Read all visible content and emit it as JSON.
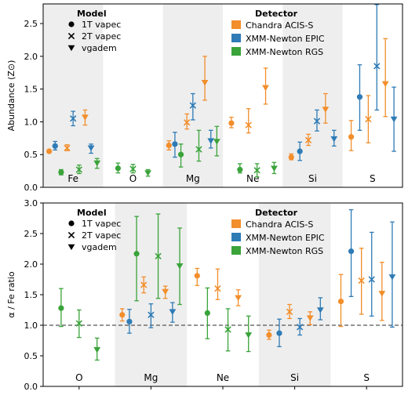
{
  "colors": {
    "chandra": "#f28e2b",
    "epic": "#2e7bb6",
    "rgs": "#3aa33a",
    "band": "#eeeeee",
    "refline": "#555555"
  },
  "legend": {
    "model_title": "Model",
    "detector_title": "Detector",
    "models": [
      {
        "label": "1T vapec",
        "marker": "circle"
      },
      {
        "label": "2T vapec",
        "marker": "x"
      },
      {
        "label": "vgadem",
        "marker": "triangle-down"
      }
    ],
    "detectors": [
      {
        "label": "Chandra ACIS-S",
        "color_key": "chandra"
      },
      {
        "label": "XMM-Newton EPIC",
        "color_key": "epic"
      },
      {
        "label": "XMM-Newton RGS",
        "color_key": "rgs"
      }
    ]
  },
  "chart_data": [
    {
      "type": "scatter",
      "ylabel": "Abundance (Z⊙)",
      "ylim": [
        0,
        2.8
      ],
      "yticks": [
        0.0,
        0.5,
        1.0,
        1.5,
        2.0,
        2.5
      ],
      "shaded_groups": [
        "Fe",
        "Mg",
        "Si"
      ],
      "reference_line": null,
      "groups": [
        {
          "element": "Fe",
          "points": [
            {
              "detector": "chandra",
              "model": "1T vapec",
              "y": 0.55,
              "lo": 0.53,
              "hi": 0.57
            },
            {
              "detector": "epic",
              "model": "1T vapec",
              "y": 0.63,
              "lo": 0.57,
              "hi": 0.7
            },
            {
              "detector": "rgs",
              "model": "1T vapec",
              "y": 0.23,
              "lo": 0.19,
              "hi": 0.27
            },
            {
              "detector": "chandra",
              "model": "2T vapec",
              "y": 0.6,
              "lo": 0.56,
              "hi": 0.65
            },
            {
              "detector": "epic",
              "model": "2T vapec",
              "y": 1.05,
              "lo": 0.94,
              "hi": 1.16
            },
            {
              "detector": "rgs",
              "model": "2T vapec",
              "y": 0.27,
              "lo": 0.21,
              "hi": 0.34
            },
            {
              "detector": "chandra",
              "model": "vgadem",
              "y": 1.07,
              "lo": 0.95,
              "hi": 1.18
            },
            {
              "detector": "epic",
              "model": "vgadem",
              "y": 0.6,
              "lo": 0.52,
              "hi": 0.66
            },
            {
              "detector": "rgs",
              "model": "vgadem",
              "y": 0.37,
              "lo": 0.29,
              "hi": 0.44
            }
          ]
        },
        {
          "element": "O",
          "points": [
            {
              "detector": "rgs",
              "model": "1T vapec",
              "y": 0.29,
              "lo": 0.22,
              "hi": 0.37
            },
            {
              "detector": "rgs",
              "model": "2T vapec",
              "y": 0.28,
              "lo": 0.22,
              "hi": 0.35
            },
            {
              "detector": "rgs",
              "model": "vgadem",
              "y": 0.22,
              "lo": 0.17,
              "hi": 0.27
            }
          ]
        },
        {
          "element": "Mg",
          "points": [
            {
              "detector": "chandra",
              "model": "1T vapec",
              "y": 0.64,
              "lo": 0.57,
              "hi": 0.71
            },
            {
              "detector": "epic",
              "model": "1T vapec",
              "y": 0.66,
              "lo": 0.46,
              "hi": 0.84
            },
            {
              "detector": "rgs",
              "model": "1T vapec",
              "y": 0.5,
              "lo": 0.31,
              "hi": 0.66
            },
            {
              "detector": "chandra",
              "model": "2T vapec",
              "y": 0.99,
              "lo": 0.89,
              "hi": 1.12
            },
            {
              "detector": "epic",
              "model": "2T vapec",
              "y": 1.25,
              "lo": 1.03,
              "hi": 1.43
            },
            {
              "detector": "rgs",
              "model": "2T vapec",
              "y": 0.58,
              "lo": 0.4,
              "hi": 0.87
            },
            {
              "detector": "chandra",
              "model": "vgadem",
              "y": 1.6,
              "lo": 1.33,
              "hi": 2.0
            },
            {
              "detector": "epic",
              "model": "vgadem",
              "y": 0.71,
              "lo": 0.6,
              "hi": 0.87
            },
            {
              "detector": "rgs",
              "model": "vgadem",
              "y": 0.7,
              "lo": 0.48,
              "hi": 0.93
            }
          ]
        },
        {
          "element": "Ne",
          "points": [
            {
              "detector": "chandra",
              "model": "1T vapec",
              "y": 0.98,
              "lo": 0.91,
              "hi": 1.07
            },
            {
              "detector": "rgs",
              "model": "1T vapec",
              "y": 0.27,
              "lo": 0.22,
              "hi": 0.36
            },
            {
              "detector": "chandra",
              "model": "2T vapec",
              "y": 0.95,
              "lo": 0.83,
              "hi": 1.2
            },
            {
              "detector": "rgs",
              "model": "2T vapec",
              "y": 0.26,
              "lo": 0.16,
              "hi": 0.36
            },
            {
              "detector": "chandra",
              "model": "vgadem",
              "y": 1.52,
              "lo": 1.27,
              "hi": 1.82
            },
            {
              "detector": "rgs",
              "model": "vgadem",
              "y": 0.29,
              "lo": 0.21,
              "hi": 0.38
            }
          ]
        },
        {
          "element": "Si",
          "points": [
            {
              "detector": "chandra",
              "model": "1T vapec",
              "y": 0.46,
              "lo": 0.42,
              "hi": 0.51
            },
            {
              "detector": "epic",
              "model": "1T vapec",
              "y": 0.55,
              "lo": 0.41,
              "hi": 0.69
            },
            {
              "detector": "chandra",
              "model": "2T vapec",
              "y": 0.72,
              "lo": 0.64,
              "hi": 0.81
            },
            {
              "detector": "epic",
              "model": "2T vapec",
              "y": 1.01,
              "lo": 0.86,
              "hi": 1.18
            },
            {
              "detector": "chandra",
              "model": "vgadem",
              "y": 1.19,
              "lo": 0.98,
              "hi": 1.43
            },
            {
              "detector": "epic",
              "model": "vgadem",
              "y": 0.74,
              "lo": 0.63,
              "hi": 0.87
            }
          ]
        },
        {
          "element": "S",
          "points": [
            {
              "detector": "chandra",
              "model": "1T vapec",
              "y": 0.77,
              "lo": 0.56,
              "hi": 1.02
            },
            {
              "detector": "epic",
              "model": "1T vapec",
              "y": 1.38,
              "lo": 0.87,
              "hi": 1.87
            },
            {
              "detector": "chandra",
              "model": "2T vapec",
              "y": 1.04,
              "lo": 0.68,
              "hi": 1.4
            },
            {
              "detector": "epic",
              "model": "2T vapec",
              "y": 1.85,
              "lo": 1.18,
              "hi": 2.79
            },
            {
              "detector": "chandra",
              "model": "vgadem",
              "y": 1.58,
              "lo": 1.08,
              "hi": 2.27
            },
            {
              "detector": "epic",
              "model": "vgadem",
              "y": 1.04,
              "lo": 0.55,
              "hi": 1.53
            }
          ]
        }
      ]
    },
    {
      "type": "scatter",
      "ylabel": "α / Fe ratio",
      "ylim": [
        0.0,
        3.0
      ],
      "yticks": [
        0.0,
        0.5,
        1.0,
        1.5,
        2.0,
        2.5,
        3.0
      ],
      "shaded_groups": [
        "Mg",
        "Si"
      ],
      "reference_line": 1.0,
      "groups": [
        {
          "element": "O",
          "points": [
            {
              "detector": "rgs",
              "model": "1T vapec",
              "y": 1.28,
              "lo": 0.98,
              "hi": 1.6
            },
            {
              "detector": "rgs",
              "model": "2T vapec",
              "y": 1.03,
              "lo": 0.8,
              "hi": 1.25
            },
            {
              "detector": "rgs",
              "model": "vgadem",
              "y": 0.6,
              "lo": 0.43,
              "hi": 0.79
            }
          ]
        },
        {
          "element": "Mg",
          "points": [
            {
              "detector": "chandra",
              "model": "1T vapec",
              "y": 1.17,
              "lo": 1.07,
              "hi": 1.27
            },
            {
              "detector": "epic",
              "model": "1T vapec",
              "y": 1.06,
              "lo": 0.87,
              "hi": 1.26
            },
            {
              "detector": "rgs",
              "model": "1T vapec",
              "y": 2.17,
              "lo": 1.4,
              "hi": 2.78
            },
            {
              "detector": "chandra",
              "model": "2T vapec",
              "y": 1.66,
              "lo": 1.53,
              "hi": 1.79
            },
            {
              "detector": "epic",
              "model": "2T vapec",
              "y": 1.17,
              "lo": 0.96,
              "hi": 1.35
            },
            {
              "detector": "rgs",
              "model": "2T vapec",
              "y": 2.13,
              "lo": 1.44,
              "hi": 2.82
            },
            {
              "detector": "chandra",
              "model": "vgadem",
              "y": 1.55,
              "lo": 1.44,
              "hi": 1.64
            },
            {
              "detector": "epic",
              "model": "vgadem",
              "y": 1.22,
              "lo": 1.05,
              "hi": 1.37
            },
            {
              "detector": "rgs",
              "model": "vgadem",
              "y": 1.97,
              "lo": 1.34,
              "hi": 2.59
            }
          ]
        },
        {
          "element": "Ne",
          "points": [
            {
              "detector": "chandra",
              "model": "1T vapec",
              "y": 1.81,
              "lo": 1.65,
              "hi": 1.93
            },
            {
              "detector": "rgs",
              "model": "1T vapec",
              "y": 1.2,
              "lo": 0.78,
              "hi": 1.61
            },
            {
              "detector": "chandra",
              "model": "2T vapec",
              "y": 1.6,
              "lo": 1.42,
              "hi": 1.92
            },
            {
              "detector": "rgs",
              "model": "2T vapec",
              "y": 0.93,
              "lo": 0.58,
              "hi": 1.27
            },
            {
              "detector": "chandra",
              "model": "vgadem",
              "y": 1.45,
              "lo": 1.32,
              "hi": 1.58
            },
            {
              "detector": "rgs",
              "model": "vgadem",
              "y": 0.84,
              "lo": 0.57,
              "hi": 1.15
            }
          ]
        },
        {
          "element": "Si",
          "points": [
            {
              "detector": "chandra",
              "model": "1T vapec",
              "y": 0.84,
              "lo": 0.77,
              "hi": 0.92
            },
            {
              "detector": "epic",
              "model": "1T vapec",
              "y": 0.87,
              "lo": 0.65,
              "hi": 1.1
            },
            {
              "detector": "chandra",
              "model": "2T vapec",
              "y": 1.22,
              "lo": 1.11,
              "hi": 1.34
            },
            {
              "detector": "epic",
              "model": "2T vapec",
              "y": 0.97,
              "lo": 0.84,
              "hi": 1.11
            },
            {
              "detector": "chandra",
              "model": "vgadem",
              "y": 1.12,
              "lo": 1.01,
              "hi": 1.22
            },
            {
              "detector": "epic",
              "model": "vgadem",
              "y": 1.25,
              "lo": 1.09,
              "hi": 1.45
            }
          ]
        },
        {
          "element": "S",
          "points": [
            {
              "detector": "chandra",
              "model": "1T vapec",
              "y": 1.39,
              "lo": 0.98,
              "hi": 1.83
            },
            {
              "detector": "epic",
              "model": "1T vapec",
              "y": 2.21,
              "lo": 1.47,
              "hi": 2.89
            },
            {
              "detector": "chandra",
              "model": "2T vapec",
              "y": 1.73,
              "lo": 1.18,
              "hi": 2.26
            },
            {
              "detector": "epic",
              "model": "2T vapec",
              "y": 1.75,
              "lo": 1.15,
              "hi": 2.52
            },
            {
              "detector": "chandra",
              "model": "vgadem",
              "y": 1.52,
              "lo": 1.08,
              "hi": 2.03
            },
            {
              "detector": "epic",
              "model": "vgadem",
              "y": 1.79,
              "lo": 0.97,
              "hi": 2.69
            }
          ]
        }
      ]
    }
  ]
}
